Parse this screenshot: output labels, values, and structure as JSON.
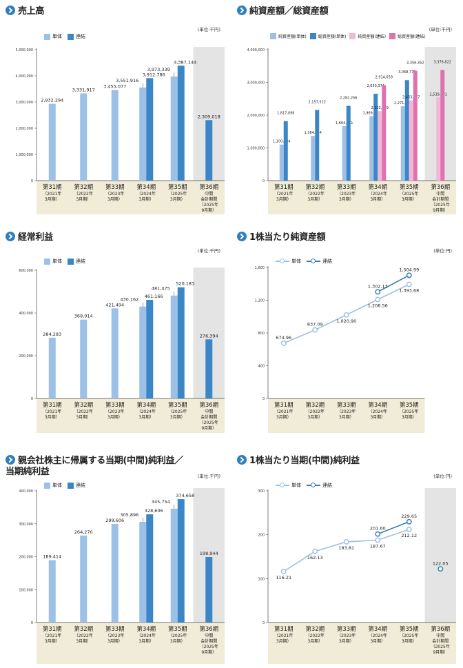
{
  "colors": {
    "single": "#9cc0e6",
    "consolidated": "#3a86c6",
    "line_single": "#9cc0e6",
    "line_consolidated": "#3a7fb4",
    "net_single": "#f3b8d6",
    "net_consolidated": "#e071ae",
    "category_band": "#f1ecd7",
    "interim_shade": "#e4e4e4",
    "title_marker": "#2f7fc0"
  },
  "chart_data": [
    {
      "id": "sales",
      "type": "bar",
      "title": "売上高",
      "unit": "(単位:千円)",
      "legend": [
        "単体",
        "連結"
      ],
      "categories": [
        {
          "name": "第31期",
          "sub": [
            "（2021年",
            "3月期）"
          ]
        },
        {
          "name": "第32期",
          "sub": [
            "（2022年",
            "3月期）"
          ]
        },
        {
          "name": "第33期",
          "sub": [
            "（2023年",
            "3月期）"
          ]
        },
        {
          "name": "第34期",
          "sub": [
            "（2024年",
            "3月期）"
          ]
        },
        {
          "name": "第35期",
          "sub": [
            "（2025年",
            "3月期）"
          ]
        },
        {
          "name": "第36期",
          "sub": [
            "中間",
            "会計期間",
            "（2025年",
            "9月期）"
          ]
        }
      ],
      "interim_index": 5,
      "ylim": [
        0,
        5000000
      ],
      "yticks": [
        "0",
        "1,000,000",
        "2,000,000",
        "3,000,000",
        "4,000,000",
        "5,000,000"
      ],
      "ytick_values": [
        0,
        1000000,
        2000000,
        3000000,
        4000000,
        5000000
      ],
      "series": [
        {
          "name": "単体",
          "color_key": "single",
          "values": [
            2932294,
            3331917,
            3455077,
            3551916,
            3973339,
            null
          ],
          "labels": [
            "2,932,294",
            "3,331,917",
            "3,455,077",
            "3,551,916",
            "3,973,339",
            ""
          ]
        },
        {
          "name": "連結",
          "color_key": "consolidated",
          "values": [
            null,
            null,
            null,
            3912786,
            4387144,
            2309018
          ],
          "labels": [
            "",
            "",
            "",
            "3,912,786",
            "4,387,144",
            "2,309,018"
          ]
        }
      ]
    },
    {
      "id": "assets",
      "type": "bar",
      "title": "純資産額／総資産額",
      "unit": "(単位:千円)",
      "legend": [
        "純資産額(単体)",
        "総資産額(単体)",
        "純資産額(連結)",
        "総資産額(連結)"
      ],
      "categories": [
        {
          "name": "第31期",
          "sub": [
            "（2021年",
            "3月期）"
          ]
        },
        {
          "name": "第32期",
          "sub": [
            "（2022年",
            "3月期）"
          ]
        },
        {
          "name": "第33期",
          "sub": [
            "（2023年",
            "3月期）"
          ]
        },
        {
          "name": "第34期",
          "sub": [
            "（2024年",
            "3月期）"
          ]
        },
        {
          "name": "第35期",
          "sub": [
            "（2025年",
            "3月期）"
          ]
        },
        {
          "name": "第36期",
          "sub": [
            "中間",
            "会計期間",
            "（2025年",
            "9月期）"
          ]
        }
      ],
      "interim_index": 5,
      "ylim": [
        0,
        4000000
      ],
      "yticks": [
        "0",
        "1,000,000",
        "2,000,000",
        "3,000,000",
        "4,000,000"
      ],
      "ytick_values": [
        0,
        1000000,
        2000000,
        3000000,
        4000000
      ],
      "series": [
        {
          "name": "純資産額(単体)",
          "color_key": "single",
          "values": [
            1100184,
            1364454,
            1664061,
            1969958,
            2271703,
            null
          ],
          "labels": [
            "1,100,184",
            "1,364,454",
            "1,664,061",
            "1,969,958",
            "2,271,703",
            ""
          ]
        },
        {
          "name": "総資産額(単体)",
          "color_key": "consolidated",
          "values": [
            1817098,
            2157522,
            2282256,
            2653374,
            3068772,
            null
          ],
          "labels": [
            "1,817,098",
            "2,157,522",
            "2,282,256",
            "2,653,374",
            "3,068,772",
            ""
          ]
        },
        {
          "name": "純資産額(連結)",
          "color_key": "net_single",
          "values": [
            null,
            null,
            null,
            2122479,
            2453127,
            2539601
          ],
          "labels": [
            "",
            "",
            "",
            "2,122,479",
            "2,453,127",
            "2,539,601"
          ]
        },
        {
          "name": "総資産額(連結)",
          "color_key": "net_consolidated",
          "values": [
            null,
            null,
            null,
            2914659,
            3356352,
            3376822
          ],
          "labels": [
            "",
            "",
            "",
            "2,914,659",
            "3,356,352",
            "3,376,822"
          ]
        }
      ]
    },
    {
      "id": "ordinary",
      "type": "bar",
      "title": "経常利益",
      "unit": "(単位:千円)",
      "legend": [
        "単体",
        "連結"
      ],
      "categories": [
        {
          "name": "第31期",
          "sub": [
            "（2021年",
            "3月期）"
          ]
        },
        {
          "name": "第32期",
          "sub": [
            "（2022年",
            "3月期）"
          ]
        },
        {
          "name": "第33期",
          "sub": [
            "（2023年",
            "3月期）"
          ]
        },
        {
          "name": "第34期",
          "sub": [
            "（2024年",
            "3月期）"
          ]
        },
        {
          "name": "第35期",
          "sub": [
            "（2025年",
            "3月期）"
          ]
        },
        {
          "name": "第36期",
          "sub": [
            "中間",
            "会計期間",
            "（2025年",
            "9月期）"
          ]
        }
      ],
      "interim_index": 5,
      "ylim": [
        0,
        600000
      ],
      "yticks": [
        "0",
        "200,000",
        "400,000",
        "600,000"
      ],
      "ytick_values": [
        0,
        200000,
        400000,
        600000
      ],
      "series": [
        {
          "name": "単体",
          "color_key": "single",
          "values": [
            284283,
            368914,
            421494,
            430162,
            481475,
            null
          ],
          "labels": [
            "284,283",
            "368,914",
            "421,494",
            "430,162",
            "481,475",
            ""
          ]
        },
        {
          "name": "連結",
          "color_key": "consolidated",
          "values": [
            null,
            null,
            null,
            461166,
            520183,
            276394
          ],
          "labels": [
            "",
            "",
            "",
            "461,166",
            "520,183",
            "276,394"
          ]
        }
      ]
    },
    {
      "id": "bps",
      "type": "line",
      "title": "1株当たり純資産額",
      "unit": "(単位:円)",
      "legend": [
        "単体",
        "連結"
      ],
      "categories": [
        {
          "name": "第31期",
          "sub": [
            "（2021年",
            "3月期）"
          ]
        },
        {
          "name": "第32期",
          "sub": [
            "（2022年",
            "3月期）"
          ]
        },
        {
          "name": "第33期",
          "sub": [
            "（2023年",
            "3月期）"
          ]
        },
        {
          "name": "第34期",
          "sub": [
            "（2024年",
            "3月期）"
          ]
        },
        {
          "name": "第35期",
          "sub": [
            "（2025年",
            "3月期）"
          ]
        }
      ],
      "interim_index": null,
      "ylim": [
        0,
        1600
      ],
      "yticks": [
        "0",
        "400",
        "800",
        "1,200",
        "1,600"
      ],
      "ytick_values": [
        0,
        400,
        800,
        1200,
        1600
      ],
      "series": [
        {
          "name": "単体",
          "color_key": "line_single",
          "values": [
            674.96,
            837.09,
            1020.9,
            1208.56,
            1393.68
          ],
          "labels": [
            "674.96",
            "837.09",
            "1,020.90",
            "1,208.56",
            "1,393.68"
          ],
          "label_pos": [
            "above",
            "above",
            "below",
            "below",
            "below"
          ]
        },
        {
          "name": "連結",
          "color_key": "line_consolidated",
          "values": [
            null,
            null,
            null,
            1302.13,
            1504.99
          ],
          "labels": [
            "",
            "",
            "",
            "1,302.13",
            "1,504.99"
          ],
          "label_pos": [
            "",
            "",
            "",
            "above",
            "above"
          ]
        }
      ]
    },
    {
      "id": "net_income",
      "type": "bar",
      "title": [
        "親会社株主に帰属する当期(中間)純利益／",
        "当期純利益"
      ],
      "unit": "(単位:千円)",
      "legend": [
        "単体",
        "連結"
      ],
      "categories": [
        {
          "name": "第31期",
          "sub": [
            "（2021年",
            "3月期）"
          ]
        },
        {
          "name": "第32期",
          "sub": [
            "（2022年",
            "3月期）"
          ]
        },
        {
          "name": "第33期",
          "sub": [
            "（2023年",
            "3月期）"
          ]
        },
        {
          "name": "第34期",
          "sub": [
            "（2024年",
            "3月期）"
          ]
        },
        {
          "name": "第35期",
          "sub": [
            "（2025年",
            "3月期）"
          ]
        },
        {
          "name": "第36期",
          "sub": [
            "中間",
            "会計期間",
            "（2025年",
            "9月期）"
          ]
        }
      ],
      "interim_index": 5,
      "ylim": [
        0,
        400000
      ],
      "yticks": [
        "0",
        "100,000",
        "200,000",
        "300,000",
        "400,000"
      ],
      "ytick_values": [
        0,
        100000,
        200000,
        300000,
        400000
      ],
      "series": [
        {
          "name": "単体",
          "color_key": "single",
          "values": [
            189414,
            264270,
            299606,
            305896,
            345754,
            null
          ],
          "labels": [
            "189,414",
            "264,270",
            "299,606",
            "305,896",
            "345,754",
            ""
          ]
        },
        {
          "name": "連結",
          "color_key": "consolidated",
          "values": [
            null,
            null,
            null,
            328606,
            374658,
            198944
          ],
          "labels": [
            "",
            "",
            "",
            "328,606",
            "374,658",
            "198,944"
          ]
        }
      ]
    },
    {
      "id": "eps",
      "type": "line",
      "title": "1株当たり当期(中間)純利益",
      "unit": "(単位:円)",
      "legend": [
        "単体",
        "連結"
      ],
      "categories": [
        {
          "name": "第31期",
          "sub": [
            "（2021年",
            "3月期）"
          ]
        },
        {
          "name": "第32期",
          "sub": [
            "（2022年",
            "3月期）"
          ]
        },
        {
          "name": "第33期",
          "sub": [
            "（2023年",
            "3月期）"
          ]
        },
        {
          "name": "第34期",
          "sub": [
            "（2024年",
            "3月期）"
          ]
        },
        {
          "name": "第35期",
          "sub": [
            "（2025年",
            "3月期）"
          ]
        },
        {
          "name": "第36期",
          "sub": [
            "中間",
            "会計期間",
            "（2025年",
            "9月期）"
          ]
        }
      ],
      "interim_index": 5,
      "ylim": [
        0,
        300
      ],
      "yticks": [
        "0",
        "100",
        "200",
        "300"
      ],
      "ytick_values": [
        0,
        100,
        200,
        300
      ],
      "series": [
        {
          "name": "単体",
          "color_key": "line_single",
          "values": [
            116.21,
            162.13,
            183.81,
            187.67,
            212.12,
            null
          ],
          "labels": [
            "116.21",
            "162.13",
            "183.81",
            "187.67",
            "212.12",
            ""
          ],
          "label_pos": [
            "below",
            "below",
            "below",
            "below",
            "below",
            ""
          ]
        },
        {
          "name": "連結",
          "color_key": "line_consolidated",
          "values": [
            null,
            null,
            null,
            201.6,
            229.65,
            122.05
          ],
          "labels": [
            "",
            "",
            "",
            "201.60",
            "229.65",
            "122.05"
          ],
          "label_pos": [
            "",
            "",
            "",
            "above",
            "above",
            "above"
          ],
          "break_before": 5
        }
      ]
    }
  ]
}
